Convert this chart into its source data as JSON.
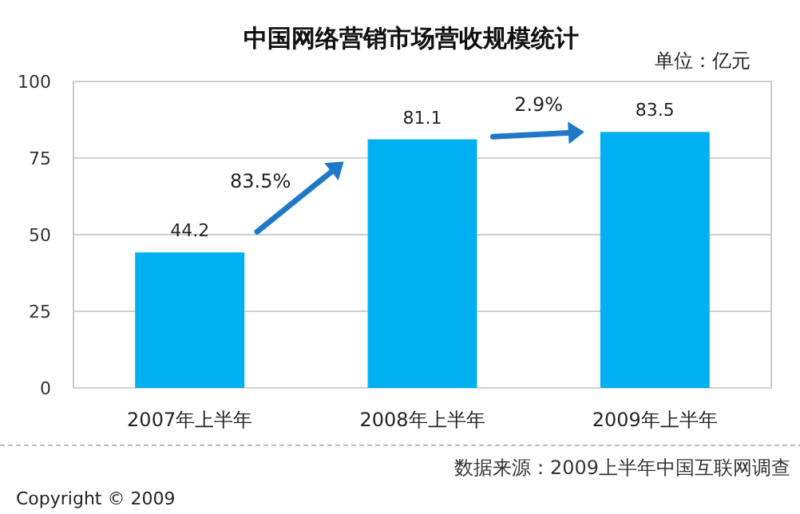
{
  "chart_data": {
    "type": "bar",
    "title": "中国网络营销市场营收规模统计",
    "categories": [
      "2007年上半年",
      "2008年上半年",
      "2009年上半年"
    ],
    "values": [
      44.2,
      81.1,
      83.5
    ],
    "color": "#00b0f0",
    "ylim": [
      0,
      100
    ],
    "yticks": [
      0,
      25,
      50,
      75,
      100
    ],
    "grid": "y",
    "data_labels": true,
    "annotations": [
      "单位：亿元",
      "83.5%",
      "2.9%",
      "数据来源：2009上半年中国互联网调查",
      "Copyright ©  2009"
    ]
  }
}
